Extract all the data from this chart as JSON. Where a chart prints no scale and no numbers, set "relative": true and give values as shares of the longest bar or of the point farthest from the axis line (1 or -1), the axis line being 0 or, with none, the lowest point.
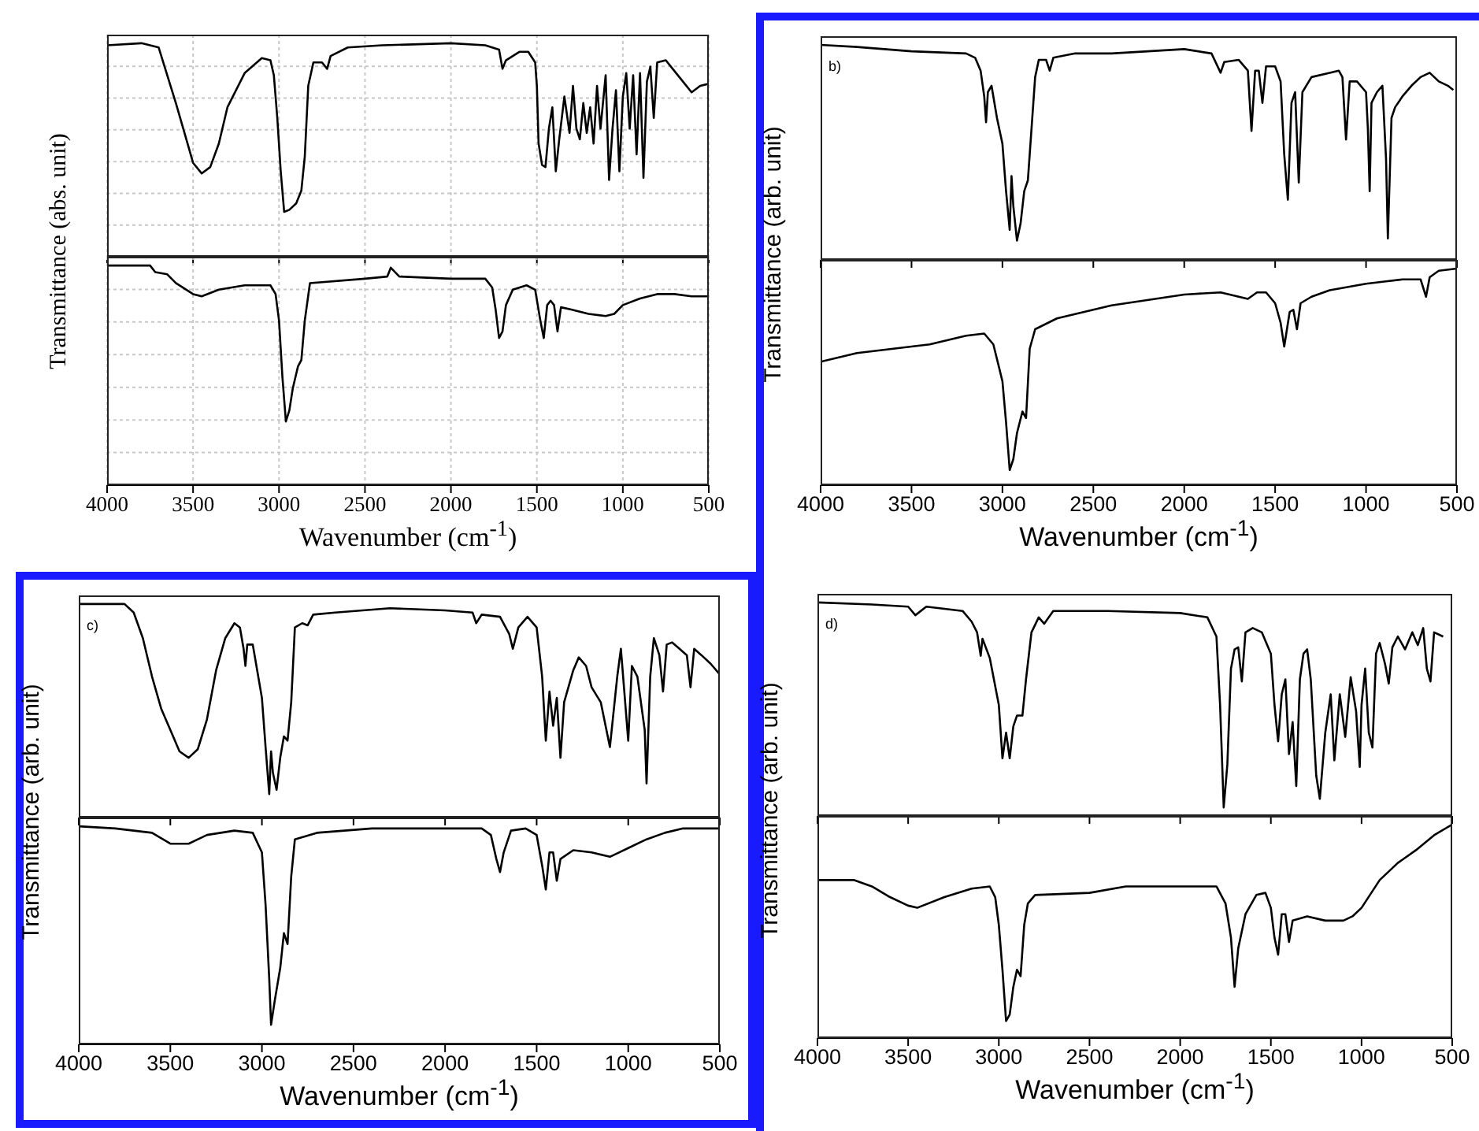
{
  "chart_data": [
    {
      "type": "line",
      "relative": true,
      "ylabel": "Transmittance (abs. unit)",
      "color": "#000000",
      "grid": true,
      "tick_labels": false,
      "xlim": [
        4000,
        500
      ],
      "xticks": [
        4000,
        3500,
        3000,
        2500,
        2000,
        1500,
        1000,
        500
      ],
      "x": [
        4000,
        3800,
        3700,
        3650,
        3600,
        3550,
        3500,
        3450,
        3400,
        3350,
        3300,
        3200,
        3100,
        3050,
        3030,
        3010,
        2990,
        2970,
        2940,
        2900,
        2870,
        2850,
        2830,
        2800,
        2750,
        2720,
        2700,
        2600,
        2400,
        2000,
        1800,
        1720,
        1700,
        1680,
        1600,
        1550,
        1510,
        1500,
        1490,
        1470,
        1450,
        1430,
        1410,
        1390,
        1370,
        1340,
        1310,
        1290,
        1270,
        1250,
        1230,
        1210,
        1190,
        1170,
        1150,
        1130,
        1100,
        1080,
        1060,
        1040,
        1020,
        1000,
        980,
        960,
        940,
        920,
        900,
        880,
        860,
        840,
        820,
        800,
        750,
        700,
        650,
        600,
        550,
        500
      ],
      "values": [
        0.99,
        1,
        0.98,
        0.85,
        0.72,
        0.58,
        0.44,
        0.39,
        0.42,
        0.53,
        0.7,
        0.86,
        0.93,
        0.92,
        0.85,
        0.65,
        0.4,
        0.21,
        0.22,
        0.25,
        0.31,
        0.47,
        0.8,
        0.91,
        0.91,
        0.88,
        0.94,
        0.98,
        0.99,
        1,
        0.99,
        0.97,
        0.88,
        0.92,
        0.96,
        0.96,
        0.91,
        0.8,
        0.53,
        0.43,
        0.42,
        0.6,
        0.7,
        0.4,
        0.55,
        0.75,
        0.58,
        0.8,
        0.6,
        0.55,
        0.72,
        0.58,
        0.7,
        0.53,
        0.8,
        0.6,
        0.85,
        0.36,
        0.6,
        0.78,
        0.4,
        0.75,
        0.86,
        0.6,
        0.85,
        0.48,
        0.86,
        0.37,
        0.82,
        0.89,
        0.65,
        0.91,
        0.92,
        0.87,
        0.82,
        0.77,
        0.8,
        0.81
      ]
    },
    {
      "type": "line",
      "relative": true,
      "xlabel": "Wavenumber (cm$^{-1}$)",
      "color": "#000000",
      "grid": true,
      "tick_labels": "x",
      "xlim": [
        4000,
        500
      ],
      "xticks": [
        4000,
        3500,
        3000,
        2500,
        2000,
        1500,
        1000,
        500
      ],
      "x": [
        4000,
        3750,
        3720,
        3650,
        3600,
        3500,
        3450,
        3350,
        3200,
        3050,
        3020,
        3000,
        2980,
        2960,
        2940,
        2920,
        2890,
        2870,
        2850,
        2820,
        2500,
        2370,
        2350,
        2300,
        2000,
        1800,
        1760,
        1740,
        1720,
        1700,
        1680,
        1640,
        1560,
        1510,
        1480,
        1460,
        1440,
        1420,
        1400,
        1380,
        1360,
        1300,
        1200,
        1100,
        1050,
        1000,
        900,
        800,
        700,
        600,
        500
      ],
      "values": [
        1,
        1,
        0.97,
        0.96,
        0.92,
        0.87,
        0.86,
        0.89,
        0.91,
        0.91,
        0.87,
        0.75,
        0.49,
        0.29,
        0.34,
        0.44,
        0.54,
        0.57,
        0.75,
        0.92,
        0.94,
        0.95,
        0.99,
        0.95,
        0.94,
        0.94,
        0.9,
        0.8,
        0.67,
        0.7,
        0.82,
        0.89,
        0.91,
        0.89,
        0.75,
        0.67,
        0.82,
        0.84,
        0.82,
        0.7,
        0.81,
        0.8,
        0.78,
        0.77,
        0.78,
        0.82,
        0.85,
        0.87,
        0.87,
        0.86,
        0.86
      ]
    },
    {
      "type": "line",
      "relative": true,
      "ylabel": "Transmittance (arb. unit)",
      "annotations": [
        "b)"
      ],
      "color": "#000000",
      "tick_labels": false,
      "xlim": [
        4000,
        500
      ],
      "xticks": [
        4000,
        3500,
        3000,
        2500,
        2000,
        1500,
        1000,
        500
      ],
      "x": [
        4000,
        3800,
        3500,
        3200,
        3150,
        3120,
        3100,
        3090,
        3080,
        3060,
        3030,
        3000,
        2980,
        2960,
        2950,
        2940,
        2920,
        2900,
        2880,
        2860,
        2840,
        2820,
        2800,
        2760,
        2740,
        2720,
        2600,
        2400,
        2000,
        1850,
        1800,
        1780,
        1700,
        1650,
        1630,
        1610,
        1590,
        1570,
        1550,
        1500,
        1470,
        1450,
        1430,
        1410,
        1390,
        1370,
        1350,
        1300,
        1200,
        1150,
        1130,
        1110,
        1090,
        1050,
        1000,
        990,
        980,
        970,
        940,
        910,
        890,
        880,
        860,
        840,
        800,
        750,
        700,
        650,
        600,
        550,
        520
      ],
      "values": [
        1,
        0.99,
        0.97,
        0.96,
        0.94,
        0.88,
        0.76,
        0.64,
        0.78,
        0.81,
        0.66,
        0.54,
        0.32,
        0.14,
        0.39,
        0.25,
        0.09,
        0.17,
        0.32,
        0.37,
        0.61,
        0.85,
        0.93,
        0.93,
        0.88,
        0.94,
        0.96,
        0.96,
        0.98,
        0.96,
        0.87,
        0.92,
        0.93,
        0.88,
        0.6,
        0.88,
        0.88,
        0.73,
        0.9,
        0.9,
        0.83,
        0.49,
        0.28,
        0.73,
        0.78,
        0.36,
        0.78,
        0.85,
        0.87,
        0.88,
        0.85,
        0.56,
        0.83,
        0.83,
        0.78,
        0.61,
        0.32,
        0.73,
        0.78,
        0.81,
        0.47,
        0.1,
        0.66,
        0.71,
        0.76,
        0.81,
        0.85,
        0.87,
        0.83,
        0.81,
        0.79
      ]
    },
    {
      "type": "line",
      "relative": true,
      "xlabel": "Wavenumber (cm$^{-1}$)",
      "color": "#000000",
      "tick_labels": "x",
      "xlim": [
        4000,
        500
      ],
      "xticks": [
        4000,
        3500,
        3000,
        2500,
        2000,
        1500,
        1000,
        500
      ],
      "x": [
        4000,
        3800,
        3600,
        3400,
        3200,
        3100,
        3050,
        3000,
        2980,
        2960,
        2940,
        2920,
        2890,
        2870,
        2850,
        2820,
        2700,
        2400,
        2000,
        1800,
        1700,
        1650,
        1600,
        1550,
        1500,
        1470,
        1450,
        1420,
        1400,
        1380,
        1360,
        1300,
        1200,
        1000,
        900,
        800,
        700,
        670,
        650,
        600,
        500
      ],
      "values": [
        0.57,
        0.61,
        0.63,
        0.65,
        0.69,
        0.7,
        0.65,
        0.48,
        0.29,
        0.07,
        0.12,
        0.24,
        0.34,
        0.31,
        0.63,
        0.72,
        0.77,
        0.83,
        0.88,
        0.89,
        0.87,
        0.86,
        0.89,
        0.89,
        0.84,
        0.75,
        0.64,
        0.8,
        0.81,
        0.72,
        0.84,
        0.87,
        0.9,
        0.93,
        0.94,
        0.95,
        0.95,
        0.87,
        0.96,
        0.99,
        1
      ]
    },
    {
      "type": "line",
      "relative": true,
      "ylabel": "Transmittance (arb. unit)",
      "annotations": [
        "c)"
      ],
      "color": "#000000",
      "tick_labels": false,
      "xlim": [
        4000,
        500
      ],
      "xticks": [
        4000,
        3500,
        3000,
        2500,
        2000,
        1500,
        1000,
        500
      ],
      "x": [
        4000,
        3750,
        3700,
        3650,
        3600,
        3550,
        3500,
        3450,
        3400,
        3350,
        3300,
        3250,
        3200,
        3150,
        3120,
        3100,
        3090,
        3080,
        3050,
        3020,
        3000,
        2980,
        2960,
        2950,
        2940,
        2920,
        2900,
        2880,
        2860,
        2840,
        2820,
        2780,
        2750,
        2720,
        2600,
        2300,
        2000,
        1850,
        1830,
        1800,
        1700,
        1650,
        1630,
        1600,
        1550,
        1500,
        1470,
        1450,
        1430,
        1410,
        1390,
        1370,
        1350,
        1300,
        1270,
        1230,
        1200,
        1150,
        1100,
        1060,
        1040,
        1000,
        980,
        950,
        910,
        900,
        880,
        860,
        830,
        810,
        790,
        760,
        720,
        680,
        660,
        640,
        600,
        550,
        500
      ],
      "values": [
        1,
        1,
        0.96,
        0.84,
        0.66,
        0.51,
        0.41,
        0.31,
        0.28,
        0.32,
        0.46,
        0.69,
        0.84,
        0.91,
        0.89,
        0.79,
        0.71,
        0.81,
        0.81,
        0.66,
        0.56,
        0.33,
        0.11,
        0.31,
        0.21,
        0.13,
        0.28,
        0.38,
        0.36,
        0.54,
        0.89,
        0.91,
        0.9,
        0.95,
        0.96,
        0.98,
        0.97,
        0.96,
        0.91,
        0.95,
        0.94,
        0.86,
        0.79,
        0.89,
        0.94,
        0.89,
        0.66,
        0.36,
        0.59,
        0.43,
        0.56,
        0.28,
        0.54,
        0.69,
        0.75,
        0.71,
        0.61,
        0.54,
        0.33,
        0.66,
        0.79,
        0.36,
        0.71,
        0.66,
        0.41,
        0.16,
        0.66,
        0.84,
        0.76,
        0.59,
        0.81,
        0.82,
        0.79,
        0.76,
        0.61,
        0.79,
        0.76,
        0.72,
        0.67
      ]
    },
    {
      "type": "line",
      "relative": true,
      "xlabel": "Wavenumber (cm$^{-1}$)",
      "color": "#000000",
      "tick_labels": "x",
      "xlim": [
        4000,
        500
      ],
      "xticks": [
        4000,
        3500,
        3000,
        2500,
        2000,
        1500,
        1000,
        500
      ],
      "x": [
        4000,
        3800,
        3600,
        3500,
        3400,
        3300,
        3150,
        3050,
        3000,
        2980,
        2960,
        2950,
        2930,
        2900,
        2880,
        2860,
        2840,
        2820,
        2700,
        2400,
        2000,
        1800,
        1750,
        1720,
        1700,
        1680,
        1640,
        1560,
        1500,
        1470,
        1450,
        1430,
        1410,
        1390,
        1370,
        1300,
        1200,
        1100,
        1050,
        1000,
        900,
        800,
        700,
        500
      ],
      "values": [
        1,
        0.99,
        0.97,
        0.92,
        0.92,
        0.96,
        0.98,
        0.97,
        0.88,
        0.64,
        0.3,
        0.09,
        0.2,
        0.35,
        0.51,
        0.46,
        0.77,
        0.94,
        0.97,
        0.99,
        0.99,
        0.99,
        0.96,
        0.85,
        0.79,
        0.88,
        0.98,
        0.99,
        0.96,
        0.82,
        0.71,
        0.88,
        0.88,
        0.75,
        0.85,
        0.89,
        0.88,
        0.86,
        0.88,
        0.9,
        0.94,
        0.97,
        0.99,
        0.99
      ]
    },
    {
      "type": "line",
      "relative": true,
      "ylabel": "Transmittance (arb. unit)",
      "annotations": [
        "d)"
      ],
      "color": "#000000",
      "tick_labels": false,
      "xlim": [
        4000,
        500
      ],
      "xticks": [
        4000,
        3500,
        3000,
        2500,
        2000,
        1500,
        1000,
        500
      ],
      "x": [
        4000,
        3700,
        3500,
        3460,
        3400,
        3200,
        3150,
        3120,
        3100,
        3090,
        3050,
        3000,
        2980,
        2960,
        2940,
        2920,
        2900,
        2870,
        2850,
        2820,
        2780,
        2750,
        2700,
        2400,
        2000,
        1850,
        1800,
        1780,
        1760,
        1740,
        1720,
        1700,
        1680,
        1660,
        1640,
        1600,
        1550,
        1500,
        1480,
        1460,
        1440,
        1420,
        1400,
        1380,
        1360,
        1340,
        1320,
        1300,
        1280,
        1250,
        1230,
        1200,
        1170,
        1150,
        1120,
        1090,
        1060,
        1030,
        1010,
        1000,
        980,
        960,
        940,
        920,
        900,
        870,
        850,
        830,
        800,
        760,
        720,
        690,
        660,
        640,
        620,
        600,
        550
      ],
      "values": [
        1,
        0.99,
        0.98,
        0.94,
        0.98,
        0.96,
        0.91,
        0.86,
        0.75,
        0.83,
        0.74,
        0.52,
        0.27,
        0.39,
        0.27,
        0.42,
        0.47,
        0.47,
        0.64,
        0.86,
        0.93,
        0.9,
        0.96,
        0.96,
        0.95,
        0.93,
        0.84,
        0.52,
        0.04,
        0.24,
        0.69,
        0.78,
        0.79,
        0.63,
        0.86,
        0.88,
        0.86,
        0.76,
        0.52,
        0.35,
        0.57,
        0.64,
        0.29,
        0.44,
        0.14,
        0.64,
        0.76,
        0.78,
        0.64,
        0.19,
        0.08,
        0.39,
        0.57,
        0.26,
        0.57,
        0.37,
        0.65,
        0.49,
        0.23,
        0.52,
        0.69,
        0.39,
        0.32,
        0.76,
        0.81,
        0.71,
        0.62,
        0.79,
        0.84,
        0.78,
        0.86,
        0.8,
        0.88,
        0.69,
        0.63,
        0.86,
        0.84
      ]
    },
    {
      "type": "line",
      "relative": true,
      "xlabel": "Wavenumber (cm$^{-1}$)",
      "color": "#000000",
      "tick_labels": "x",
      "xlim": [
        4000,
        500
      ],
      "xticks": [
        4000,
        3500,
        3000,
        2500,
        2000,
        1500,
        1000,
        500
      ],
      "x": [
        4000,
        3800,
        3700,
        3600,
        3500,
        3450,
        3300,
        3150,
        3050,
        3020,
        3000,
        2980,
        2960,
        2940,
        2920,
        2900,
        2880,
        2860,
        2840,
        2800,
        2500,
        2300,
        2000,
        1800,
        1750,
        1720,
        1700,
        1680,
        1640,
        1580,
        1530,
        1500,
        1480,
        1460,
        1440,
        1420,
        1400,
        1380,
        1300,
        1200,
        1100,
        1050,
        1000,
        900,
        800,
        700,
        600,
        500
      ],
      "values": [
        0.74,
        0.74,
        0.71,
        0.66,
        0.62,
        0.61,
        0.66,
        0.7,
        0.71,
        0.66,
        0.53,
        0.32,
        0.08,
        0.11,
        0.24,
        0.32,
        0.29,
        0.53,
        0.63,
        0.67,
        0.68,
        0.71,
        0.71,
        0.71,
        0.63,
        0.47,
        0.24,
        0.42,
        0.58,
        0.67,
        0.68,
        0.61,
        0.47,
        0.39,
        0.58,
        0.58,
        0.45,
        0.55,
        0.57,
        0.55,
        0.55,
        0.57,
        0.61,
        0.74,
        0.82,
        0.88,
        0.95,
        1
      ]
    }
  ]
}
